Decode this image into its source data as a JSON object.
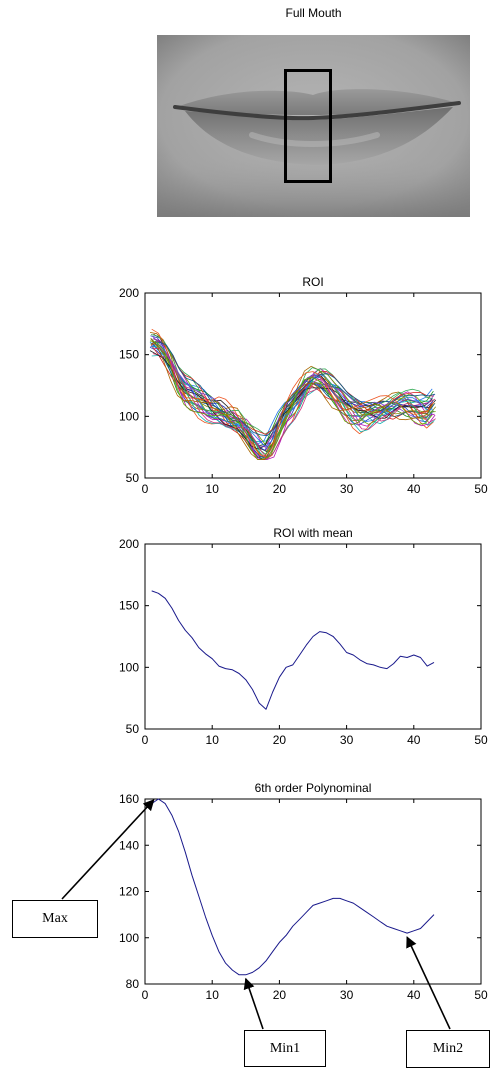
{
  "image_panel": {
    "title": "Full Mouth",
    "image": "grayscale close-up photo of closed lips with a vertical rectangular region-of-interest box"
  },
  "charts": [
    {
      "title": "ROI"
    },
    {
      "title": "ROI with mean"
    },
    {
      "title": "6th order Polynominal"
    }
  ],
  "callouts": {
    "max": "Max",
    "min1": "Min1",
    "min2": "Min2"
  },
  "chart_data": [
    {
      "type": "line",
      "title": "ROI",
      "xlabel": "",
      "ylabel": "",
      "xlim": [
        0,
        50
      ],
      "ylim": [
        50,
        200
      ],
      "xticks": [
        0,
        10,
        20,
        30,
        40,
        50
      ],
      "yticks": [
        50,
        100,
        150,
        200
      ],
      "grid": false,
      "note": "about 30 overlapping multicolored traces of pixel intensity along the ROI column",
      "base": [
        [
          1,
          160
        ],
        [
          2,
          158
        ],
        [
          3,
          152
        ],
        [
          4,
          142
        ],
        [
          5,
          130
        ],
        [
          6,
          122
        ],
        [
          7,
          118
        ],
        [
          8,
          114
        ],
        [
          9,
          110
        ],
        [
          10,
          106
        ],
        [
          11,
          104
        ],
        [
          12,
          100
        ],
        [
          13,
          97
        ],
        [
          14,
          94
        ],
        [
          15,
          88
        ],
        [
          16,
          80
        ],
        [
          17,
          74
        ],
        [
          18,
          72
        ],
        [
          19,
          80
        ],
        [
          20,
          92
        ],
        [
          21,
          103
        ],
        [
          22,
          110
        ],
        [
          23,
          118
        ],
        [
          24,
          126
        ],
        [
          25,
          130
        ],
        [
          26,
          130
        ],
        [
          27,
          126
        ],
        [
          28,
          121
        ],
        [
          29,
          116
        ],
        [
          30,
          110
        ],
        [
          31,
          106
        ],
        [
          32,
          103
        ],
        [
          33,
          103
        ],
        [
          34,
          104
        ],
        [
          35,
          105
        ],
        [
          36,
          106
        ],
        [
          37,
          108
        ],
        [
          38,
          110
        ],
        [
          39,
          110
        ],
        [
          40,
          108
        ],
        [
          41,
          106
        ],
        [
          42,
          105
        ],
        [
          43,
          110
        ]
      ],
      "series_colors": [
        "#1f3dbf",
        "#1a8a1a",
        "#d62020",
        "#12b5b5",
        "#b512b5",
        "#8a8a12",
        "#222222",
        "#2277ee",
        "#33aa55",
        "#ee5522",
        "#7744cc",
        "#0a5a8a",
        "#cc3377",
        "#66aa00",
        "#aa6600"
      ]
    },
    {
      "type": "line",
      "title": "ROI with mean",
      "xlabel": "",
      "ylabel": "",
      "xlim": [
        0,
        50
      ],
      "ylim": [
        50,
        200
      ],
      "xticks": [
        0,
        10,
        20,
        30,
        40,
        50
      ],
      "yticks": [
        50,
        100,
        150,
        200
      ],
      "grid": false,
      "series": [
        {
          "color": "#1a1a8c",
          "points": [
            [
              1,
              162
            ],
            [
              2,
              160
            ],
            [
              3,
              156
            ],
            [
              4,
              148
            ],
            [
              5,
              138
            ],
            [
              6,
              130
            ],
            [
              7,
              124
            ],
            [
              8,
              116
            ],
            [
              9,
              111
            ],
            [
              10,
              107
            ],
            [
              11,
              101
            ],
            [
              12,
              99
            ],
            [
              13,
              98
            ],
            [
              14,
              95
            ],
            [
              15,
              90
            ],
            [
              16,
              82
            ],
            [
              17,
              71
            ],
            [
              18,
              66
            ],
            [
              19,
              80
            ],
            [
              20,
              92
            ],
            [
              21,
              100
            ],
            [
              22,
              102
            ],
            [
              23,
              110
            ],
            [
              24,
              118
            ],
            [
              25,
              125
            ],
            [
              26,
              129
            ],
            [
              27,
              128
            ],
            [
              28,
              125
            ],
            [
              29,
              119
            ],
            [
              30,
              112
            ],
            [
              31,
              110
            ],
            [
              32,
              106
            ],
            [
              33,
              103
            ],
            [
              34,
              102
            ],
            [
              35,
              100
            ],
            [
              36,
              99
            ],
            [
              37,
              103
            ],
            [
              38,
              109
            ],
            [
              39,
              108
            ],
            [
              40,
              110
            ],
            [
              41,
              108
            ],
            [
              42,
              101
            ],
            [
              43,
              104
            ]
          ]
        }
      ]
    },
    {
      "type": "line",
      "title": "6th order Polynominal",
      "xlabel": "",
      "ylabel": "",
      "xlim": [
        0,
        50
      ],
      "ylim": [
        80,
        160
      ],
      "xticks": [
        0,
        10,
        20,
        30,
        40,
        50
      ],
      "yticks": [
        80,
        100,
        120,
        140,
        160
      ],
      "grid": false,
      "series": [
        {
          "color": "#1a1a8c",
          "points": [
            [
              1,
              158
            ],
            [
              2,
              160
            ],
            [
              3,
              158
            ],
            [
              4,
              153
            ],
            [
              5,
              146
            ],
            [
              6,
              137
            ],
            [
              7,
              127
            ],
            [
              8,
              118
            ],
            [
              9,
              109
            ],
            [
              10,
              101
            ],
            [
              11,
              94
            ],
            [
              12,
              89
            ],
            [
              13,
              86
            ],
            [
              14,
              84
            ],
            [
              15,
              84
            ],
            [
              16,
              85
            ],
            [
              17,
              87
            ],
            [
              18,
              90
            ],
            [
              19,
              94
            ],
            [
              20,
              98
            ],
            [
              21,
              101
            ],
            [
              22,
              105
            ],
            [
              23,
              108
            ],
            [
              24,
              111
            ],
            [
              25,
              114
            ],
            [
              26,
              115
            ],
            [
              27,
              116
            ],
            [
              28,
              117
            ],
            [
              29,
              117
            ],
            [
              30,
              116
            ],
            [
              31,
              115
            ],
            [
              32,
              113
            ],
            [
              33,
              111
            ],
            [
              34,
              109
            ],
            [
              35,
              107
            ],
            [
              36,
              105
            ],
            [
              37,
              104
            ],
            [
              38,
              103
            ],
            [
              39,
              102
            ],
            [
              40,
              103
            ],
            [
              41,
              104
            ],
            [
              42,
              107
            ],
            [
              43,
              110
            ]
          ]
        }
      ],
      "annotations": [
        {
          "label": "Max",
          "x": 1,
          "y": 160
        },
        {
          "label": "Min1",
          "x": 15,
          "y": 84
        },
        {
          "label": "Min2",
          "x": 39,
          "y": 102
        }
      ]
    }
  ]
}
